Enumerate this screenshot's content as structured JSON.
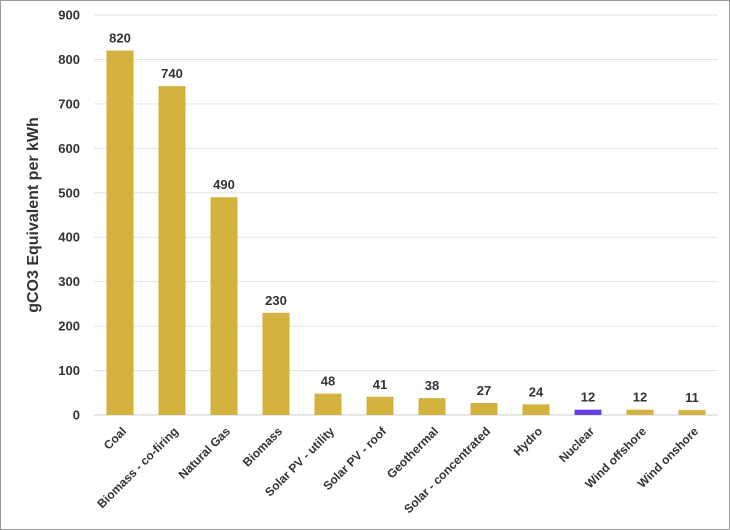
{
  "chart_data": {
    "type": "bar",
    "ylabel": "gCO3 Equivalent per kWh",
    "xlabel": "",
    "ylim": [
      0,
      900
    ],
    "yticks": [
      0,
      100,
      200,
      300,
      400,
      500,
      600,
      700,
      800,
      900
    ],
    "grid": true,
    "legend": "none",
    "categories": [
      "Coal",
      "Biomass - co-firing",
      "Natural Gas",
      "Biomass",
      "Solar PV - utility",
      "Solar PV - roof",
      "Geothermal",
      "Solar - concentrated",
      "Hydro",
      "Nuclear",
      "Wind offshore",
      "Wind onshore"
    ],
    "values": [
      820,
      740,
      490,
      230,
      48,
      41,
      38,
      27,
      24,
      12,
      12,
      11
    ],
    "data_labels": [
      "820",
      "740",
      "490",
      "230",
      "48",
      "41",
      "38",
      "27",
      "24",
      "12",
      "12",
      "11"
    ],
    "colors": {
      "default": "#D4B240",
      "highlight": "#6A3FE0",
      "highlight_category": "Nuclear"
    }
  }
}
